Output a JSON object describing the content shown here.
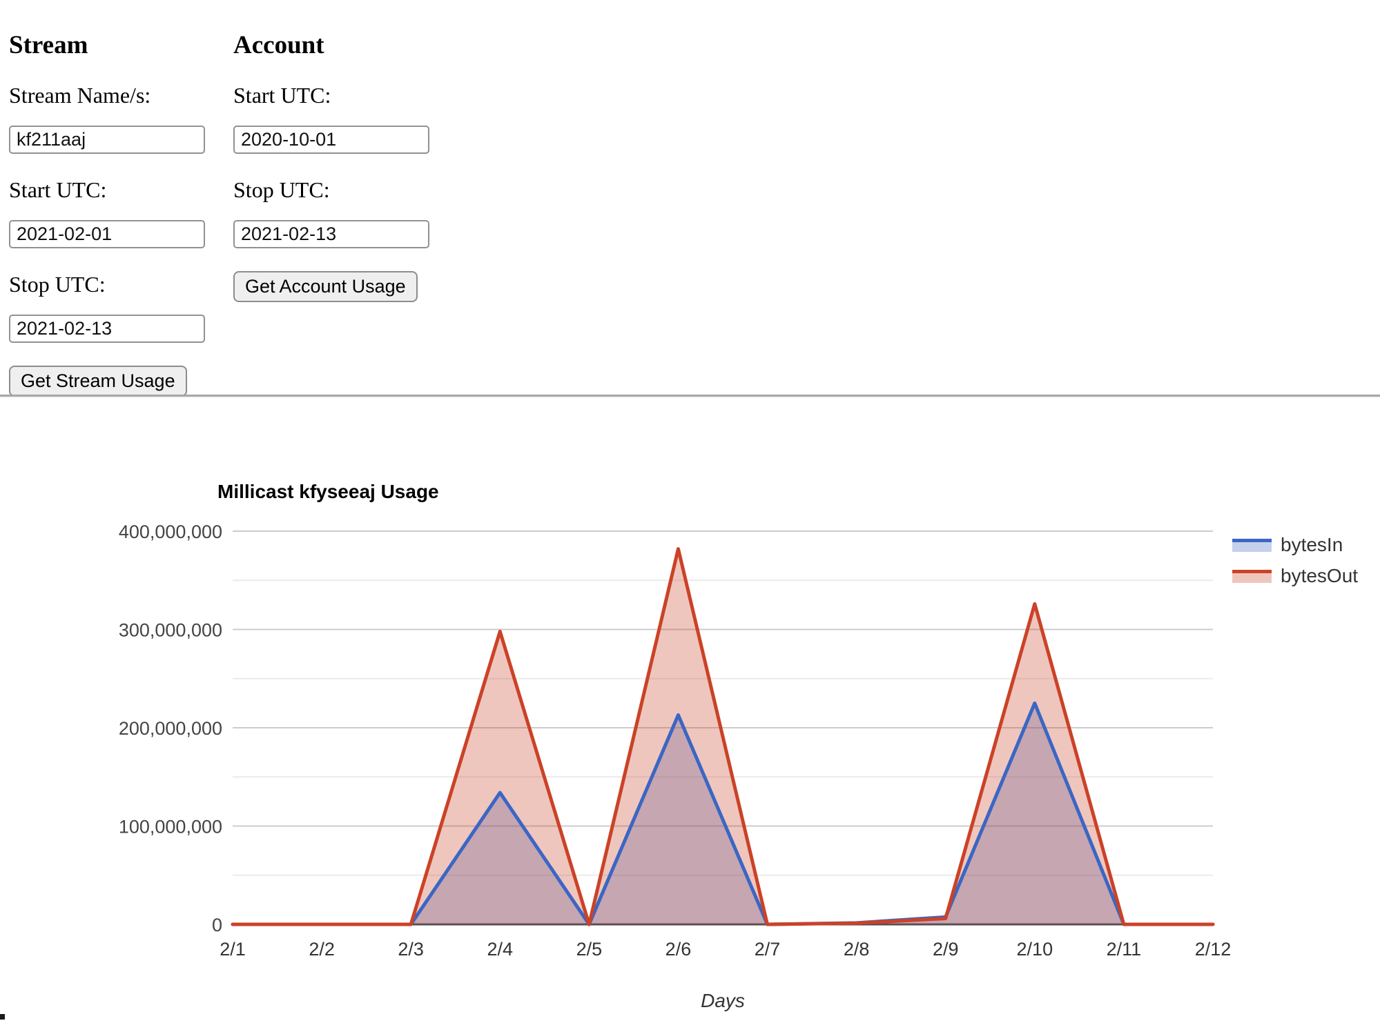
{
  "form": {
    "stream": {
      "heading": "Stream",
      "name_label": "Stream Name/s:",
      "name_value": "kf211aaj",
      "start_label": "Start UTC:",
      "start_value": "2021-02-01",
      "stop_label": "Stop UTC:",
      "stop_value": "2021-02-13",
      "button_label": "Get Stream Usage"
    },
    "account": {
      "heading": "Account",
      "start_label": "Start UTC:",
      "start_value": "2020-10-01",
      "stop_label": "Stop UTC:",
      "stop_value": "2021-02-13",
      "button_label": "Get Account Usage"
    }
  },
  "chart_data": {
    "type": "area",
    "title": "Millicast kfyseeaj Usage",
    "xlabel": "Days",
    "categories": [
      "2/1",
      "2/2",
      "2/3",
      "2/4",
      "2/5",
      "2/6",
      "2/7",
      "2/8",
      "2/9",
      "2/10",
      "2/11",
      "2/12"
    ],
    "series": [
      {
        "name": "bytesIn",
        "color": "#3b66c4",
        "values": [
          0,
          0,
          0,
          134000000,
          0,
          213000000,
          0,
          1500000,
          7500000,
          225000000,
          0,
          0
        ]
      },
      {
        "name": "bytesOut",
        "color": "#cb4227",
        "values": [
          0,
          0,
          0,
          298000000,
          0,
          382000000,
          0,
          1200000,
          6000000,
          326000000,
          0,
          0
        ]
      }
    ],
    "ylim": [
      0,
      400000000
    ],
    "y_major_ticks": [
      "0",
      "100,000,000",
      "200,000,000",
      "300,000,000",
      "400,000,000"
    ],
    "grid": "major #cccccc, minor #ebebeb, baseline #4d4d4d",
    "legend_position": "right",
    "fill_opacity": 0.3,
    "colors": {
      "axis_text": "#444444",
      "tick_text": "#333333",
      "title_text": "#000000"
    }
  }
}
